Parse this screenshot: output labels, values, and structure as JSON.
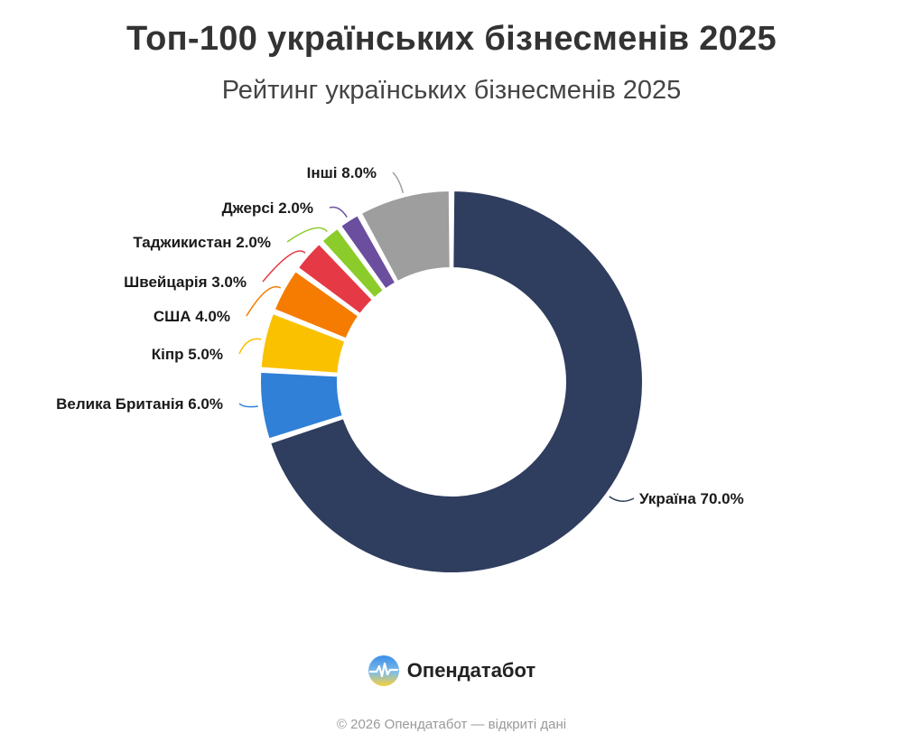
{
  "title": "Топ-100 українських бізнесменів 2025",
  "subtitle": "Рейтинг українських бізнесменів 2025",
  "chart_data": {
    "type": "pie",
    "variant": "donut",
    "slices": [
      {
        "label": "Україна",
        "value": 70.0,
        "display": "Україна 70.0%",
        "color": "#2f3d5e"
      },
      {
        "label": "Велика Британія",
        "value": 6.0,
        "display": "Велика Британія 6.0%",
        "color": "#2f80d6"
      },
      {
        "label": "Кіпр",
        "value": 5.0,
        "display": "Кіпр 5.0%",
        "color": "#f9c100"
      },
      {
        "label": "США",
        "value": 4.0,
        "display": "США 4.0%",
        "color": "#f57c00"
      },
      {
        "label": "Швейцарія",
        "value": 3.0,
        "display": "Швейцарія 3.0%",
        "color": "#e53945"
      },
      {
        "label": "Таджикистан",
        "value": 2.0,
        "display": "Таджикистан 2.0%",
        "color": "#8ccc2a"
      },
      {
        "label": "Джерсі",
        "value": 2.0,
        "display": "Джерсі 2.0%",
        "color": "#6b4f9e"
      },
      {
        "label": "Інші",
        "value": 8.0,
        "display": "Інші 8.0%",
        "color": "#9e9e9e"
      }
    ]
  },
  "brand": {
    "name": "Опендатабот",
    "icon": "opendatabot-logo-icon"
  },
  "footer": "© 2026 Опендатабот — відкриті дані"
}
